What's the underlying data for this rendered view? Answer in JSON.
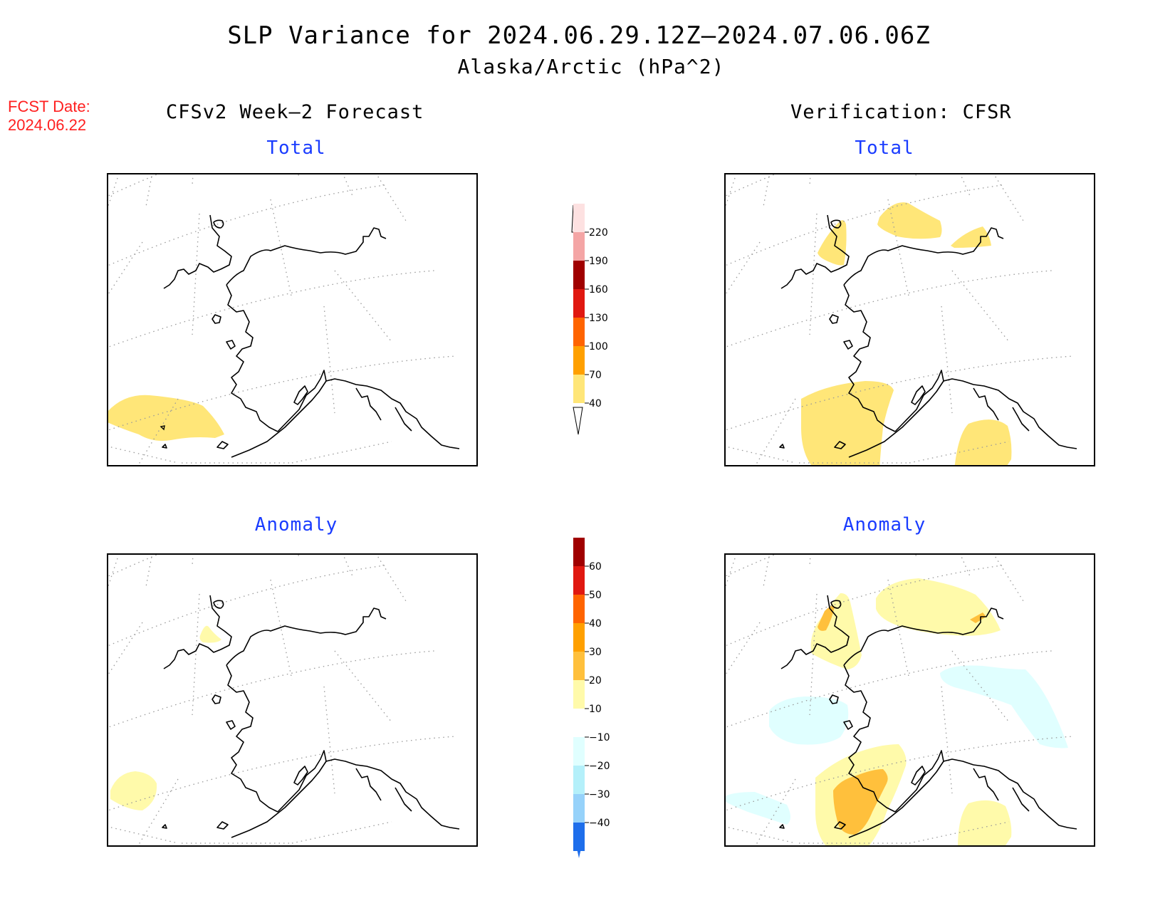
{
  "title": {
    "line1": "SLP Variance for 2024.06.29.12Z–2024.07.06.06Z",
    "line2": "Alaska/Arctic (hPa^2)"
  },
  "fcst": {
    "label": "FCST Date:",
    "date": "2024.06.22"
  },
  "columns": {
    "left": "CFSv2 Week–2 Forecast",
    "right": "Verification: CFSR"
  },
  "panels": {
    "fcst_total": "Total",
    "verif_total": "Total",
    "fcst_anom": "Anomaly",
    "verif_anom": "Anomaly"
  },
  "colorbar_total": {
    "ticks": [
      "220",
      "190",
      "160",
      "130",
      "100",
      "70",
      "40"
    ],
    "colors": [
      "#fde1e1",
      "#f4a5a5",
      "#a00000",
      "#e01810",
      "#ff6400",
      "#ffa000",
      "#ffe678"
    ]
  },
  "colorbar_anom": {
    "ticks": [
      "60",
      "50",
      "40",
      "30",
      "20",
      "10",
      "−10",
      "−20",
      "−30",
      "−40"
    ],
    "colors": [
      "#a00000",
      "#e01810",
      "#ff6400",
      "#ffa000",
      "#ffc03c",
      "#fffaaa",
      "#ffffff",
      "#e0ffff",
      "#b4f0fa",
      "#96d2fa",
      "#1e6eeb"
    ]
  }
}
